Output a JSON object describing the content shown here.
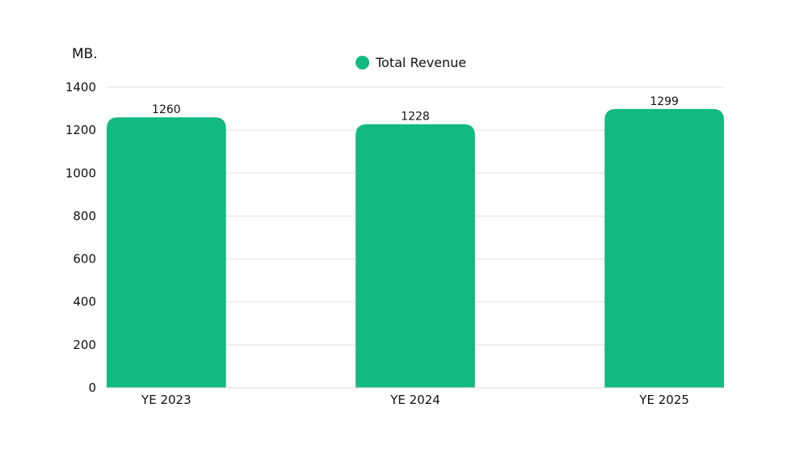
{
  "chart_data": {
    "type": "bar",
    "unit_label": "MB.",
    "categories": [
      "YE 2023",
      "YE 2024",
      "YE 2025"
    ],
    "series": [
      {
        "name": "Total Revenue",
        "values": [
          1260,
          1228,
          1299
        ],
        "color": "#12b981"
      }
    ],
    "data_labels": [
      "1260",
      "1228",
      "1299"
    ],
    "y_ticks": [
      "0",
      "200",
      "400",
      "600",
      "800",
      "1000",
      "1200",
      "1400"
    ],
    "ylim": [
      0,
      1400
    ],
    "grid": true,
    "legend_position": "top-center",
    "title": "",
    "xlabel": "",
    "ylabel": ""
  }
}
